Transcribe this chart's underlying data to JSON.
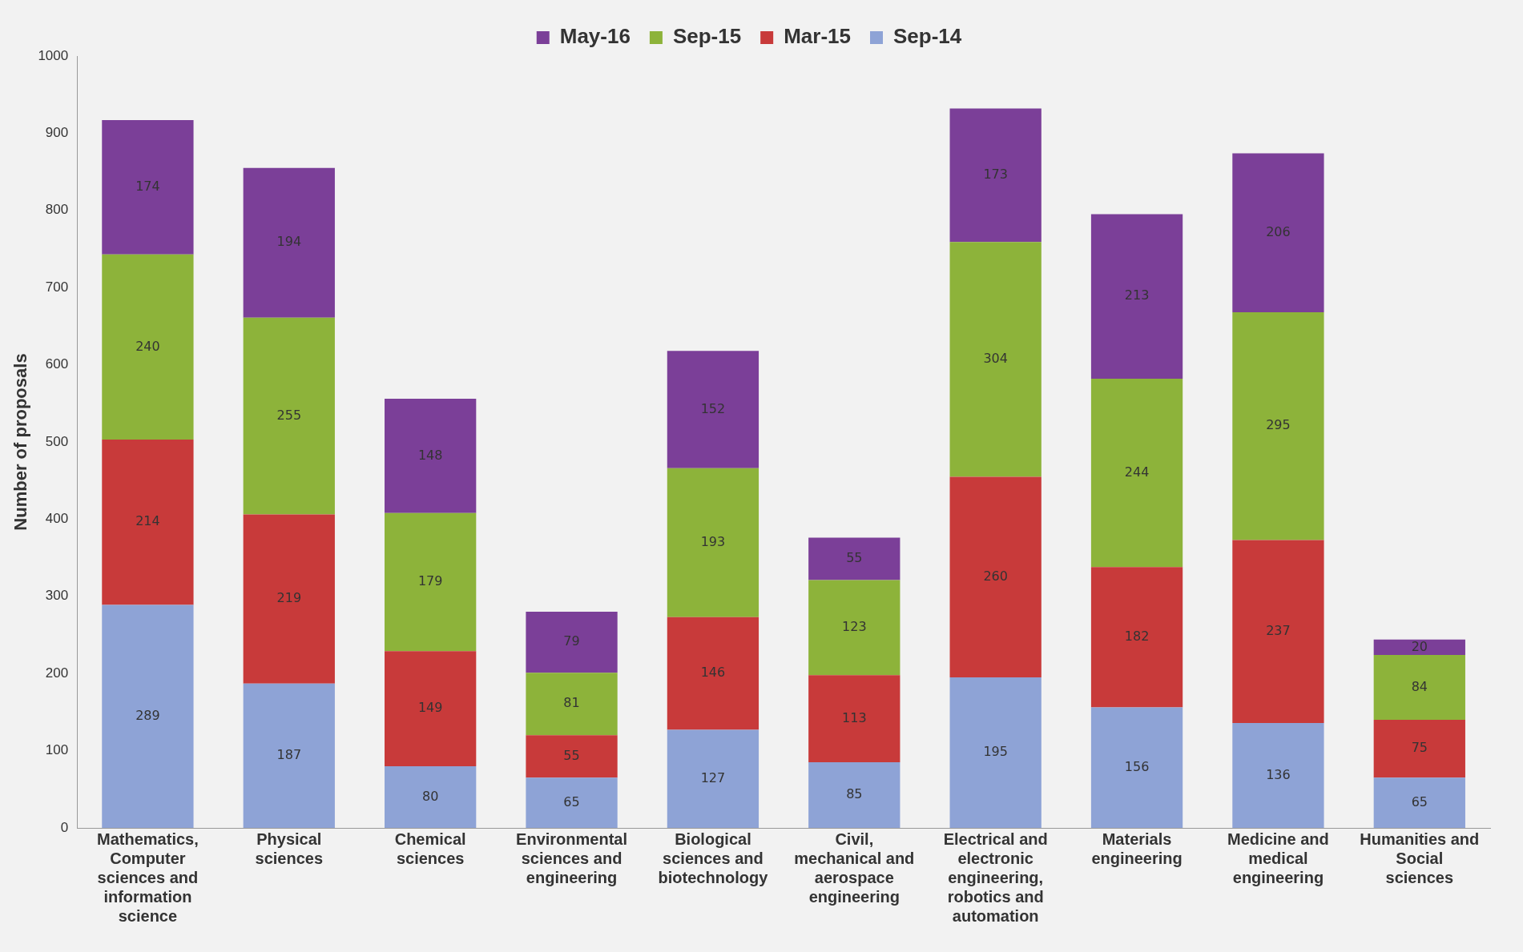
{
  "chart_data": {
    "type": "bar",
    "stacked": true,
    "ylabel": "Number of proposals",
    "categories": [
      "Mathematics, Computer sciences and information science",
      "Physical sciences",
      "Chemical sciences",
      "Environmental sciences and engineering",
      "Biological sciences and biotechnology",
      "Civil, mechanical and aerospace engineering",
      "Electrical and electronic engineering, robotics and automation",
      "Materials engineering",
      "Medicine and medical engineering",
      "Humanities and Social sciences"
    ],
    "series": [
      {
        "name": "Sep-14",
        "color": "#8ea3d6",
        "values": [
          289,
          187,
          80,
          65,
          127,
          85,
          195,
          156,
          136,
          65
        ]
      },
      {
        "name": "Mar-15",
        "color": "#c83a3a",
        "values": [
          214,
          219,
          149,
          55,
          146,
          113,
          260,
          182,
          237,
          75
        ]
      },
      {
        "name": "Sep-15",
        "color": "#8db33a",
        "values": [
          240,
          255,
          179,
          81,
          193,
          123,
          304,
          244,
          295,
          84
        ]
      },
      {
        "name": "May-16",
        "color": "#7b3f98",
        "values": [
          174,
          194,
          148,
          79,
          152,
          55,
          173,
          213,
          206,
          20
        ]
      }
    ],
    "ylim": [
      0,
      1000
    ],
    "yticks": [
      0,
      100,
      200,
      300,
      400,
      500,
      600,
      700,
      800,
      900,
      1000
    ],
    "grid": false,
    "legend": "top",
    "data_labels": true
  }
}
